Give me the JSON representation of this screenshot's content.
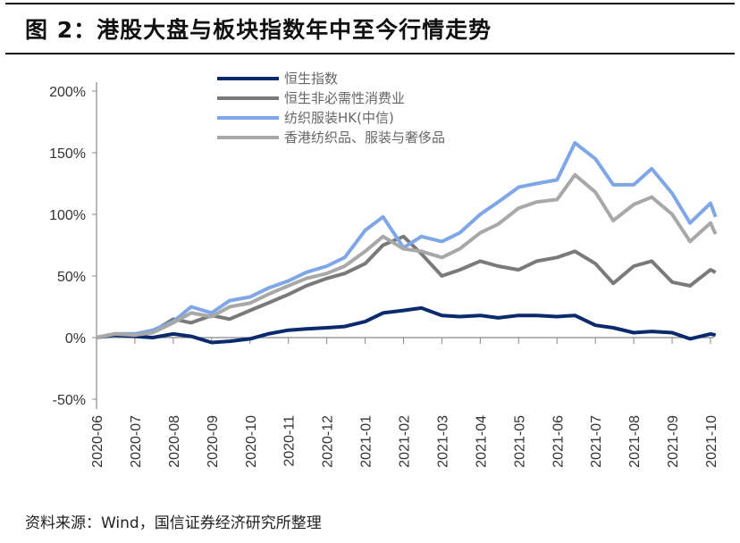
{
  "title": "图 2：港股大盘与板块指数年中至今行情走势",
  "source": "资料来源：Wind，国信证券经济研究所整理",
  "chart_data": {
    "type": "line",
    "title": "",
    "xlabel": "",
    "ylabel": "",
    "ylim": [
      -50,
      200
    ],
    "yticks": [
      "-50%",
      "0%",
      "50%",
      "100%",
      "150%",
      "200%"
    ],
    "ytick_values": [
      -50,
      0,
      50,
      100,
      150,
      200
    ],
    "xticks": [
      "2020-06",
      "2020-07",
      "2020-08",
      "2020-09",
      "2020-10",
      "2020-11",
      "2020-12",
      "2021-01",
      "2021-02",
      "2021-03",
      "2021-04",
      "2021-05",
      "2021-06",
      "2021-07",
      "2021-08",
      "2021-09",
      "2021-10"
    ],
    "grid": false,
    "legend_position": "top-center",
    "x": [
      "2020-06-01",
      "2020-06-15",
      "2020-07-01",
      "2020-07-15",
      "2020-08-01",
      "2020-08-15",
      "2020-09-01",
      "2020-09-15",
      "2020-10-01",
      "2020-10-15",
      "2020-11-01",
      "2020-11-15",
      "2020-12-01",
      "2020-12-15",
      "2021-01-01",
      "2021-01-15",
      "2021-02-01",
      "2021-02-15",
      "2021-03-01",
      "2021-03-15",
      "2021-04-01",
      "2021-04-15",
      "2021-05-01",
      "2021-05-15",
      "2021-06-01",
      "2021-06-15",
      "2021-07-01",
      "2021-07-15",
      "2021-08-01",
      "2021-08-15",
      "2021-09-01",
      "2021-09-15",
      "2021-10-01",
      "2021-10-05"
    ],
    "series": [
      {
        "name": "恒生指数",
        "color": "#0b2a6e",
        "width": 4,
        "values": [
          0,
          2,
          1,
          0,
          3,
          1,
          -4,
          -3,
          -1,
          3,
          6,
          7,
          8,
          9,
          13,
          20,
          22,
          24,
          18,
          17,
          18,
          16,
          18,
          18,
          17,
          18,
          10,
          8,
          4,
          5,
          4,
          -1,
          3,
          2
        ]
      },
      {
        "name": "恒生非必需性消费业",
        "color": "#7a7a7a",
        "width": 4,
        "values": [
          0,
          3,
          3,
          5,
          15,
          12,
          18,
          15,
          22,
          28,
          35,
          42,
          48,
          52,
          60,
          75,
          82,
          68,
          50,
          55,
          62,
          58,
          55,
          62,
          65,
          70,
          60,
          44,
          58,
          62,
          45,
          42,
          55,
          53
        ]
      },
      {
        "name": "纺织服装HK(中信)",
        "color": "#7fa6e6",
        "width": 4,
        "values": [
          0,
          3,
          3,
          6,
          13,
          25,
          20,
          30,
          33,
          40,
          46,
          53,
          58,
          65,
          87,
          98,
          73,
          82,
          78,
          85,
          100,
          110,
          122,
          125,
          128,
          158,
          145,
          124,
          124,
          137,
          117,
          93,
          109,
          98
        ]
      },
      {
        "name": "香港纺织品、服装与奢侈品",
        "color": "#a8a8a8",
        "width": 4,
        "values": [
          0,
          3,
          2,
          4,
          12,
          20,
          17,
          25,
          28,
          35,
          42,
          48,
          52,
          58,
          70,
          82,
          72,
          70,
          65,
          72,
          85,
          92,
          105,
          110,
          112,
          132,
          118,
          95,
          108,
          114,
          100,
          78,
          93,
          84
        ]
      }
    ]
  }
}
